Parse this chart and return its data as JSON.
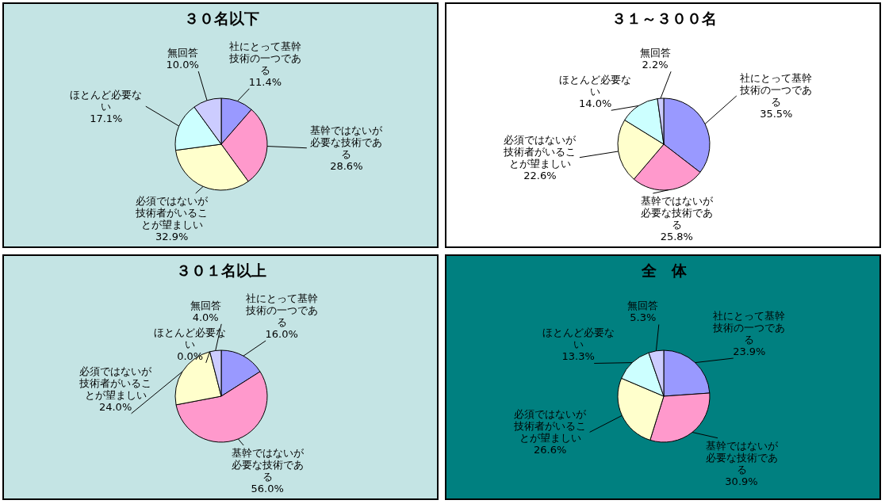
{
  "chart_data": [
    {
      "type": "pie",
      "title": "３０名以下",
      "categories": [
        "社にとって基幹技術の一つである",
        "基幹ではないが必要な技術である",
        "必須ではないが技術者がいることが望ましい",
        "ほとんど必要ない",
        "無回答"
      ],
      "values": [
        11.4,
        28.6,
        32.9,
        17.1,
        10.0
      ],
      "value_labels": [
        "11.4%",
        "28.6%",
        "32.9%",
        "17.1%",
        "10.0%"
      ],
      "colors": [
        "#9999ff",
        "#ff99cc",
        "#ffffcc",
        "#ccffff",
        "#ccccff"
      ]
    },
    {
      "type": "pie",
      "title": "３１～３００名",
      "categories": [
        "社にとって基幹技術の一つである",
        "基幹ではないが必要な技術である",
        "必須ではないが技術者がいることが望ましい",
        "ほとんど必要ない",
        "無回答"
      ],
      "values": [
        35.5,
        25.8,
        22.6,
        14.0,
        2.2
      ],
      "value_labels": [
        "35.5%",
        "25.8%",
        "22.6%",
        "14.0%",
        "2.2%"
      ],
      "colors": [
        "#9999ff",
        "#ff99cc",
        "#ffffcc",
        "#ccffff",
        "#ccccff"
      ]
    },
    {
      "type": "pie",
      "title": "３０１名以上",
      "categories": [
        "社にとって基幹技術の一つである",
        "基幹ではないが必要な技術である",
        "必須ではないが技術者がいることが望ましい",
        "ほとんど必要ない",
        "無回答"
      ],
      "values": [
        16.0,
        56.0,
        24.0,
        0.0,
        4.0
      ],
      "value_labels": [
        "16.0%",
        "56.0%",
        "24.0%",
        "0.0%",
        "4.0%"
      ],
      "colors": [
        "#9999ff",
        "#ff99cc",
        "#ffffcc",
        "#ccffff",
        "#ccccff"
      ]
    },
    {
      "type": "pie",
      "title": "全　体",
      "categories": [
        "社にとって基幹技術の一つである",
        "基幹ではないが必要な技術である",
        "必須ではないが技術者がいることが望ましい",
        "ほとんど必要ない",
        "無回答"
      ],
      "values": [
        23.9,
        30.9,
        26.6,
        13.3,
        5.3
      ],
      "value_labels": [
        "23.9%",
        "30.9%",
        "26.6%",
        "13.3%",
        "5.3%"
      ],
      "colors": [
        "#9999ff",
        "#ff99cc",
        "#ffffcc",
        "#ccffff",
        "#ccccff"
      ]
    }
  ]
}
